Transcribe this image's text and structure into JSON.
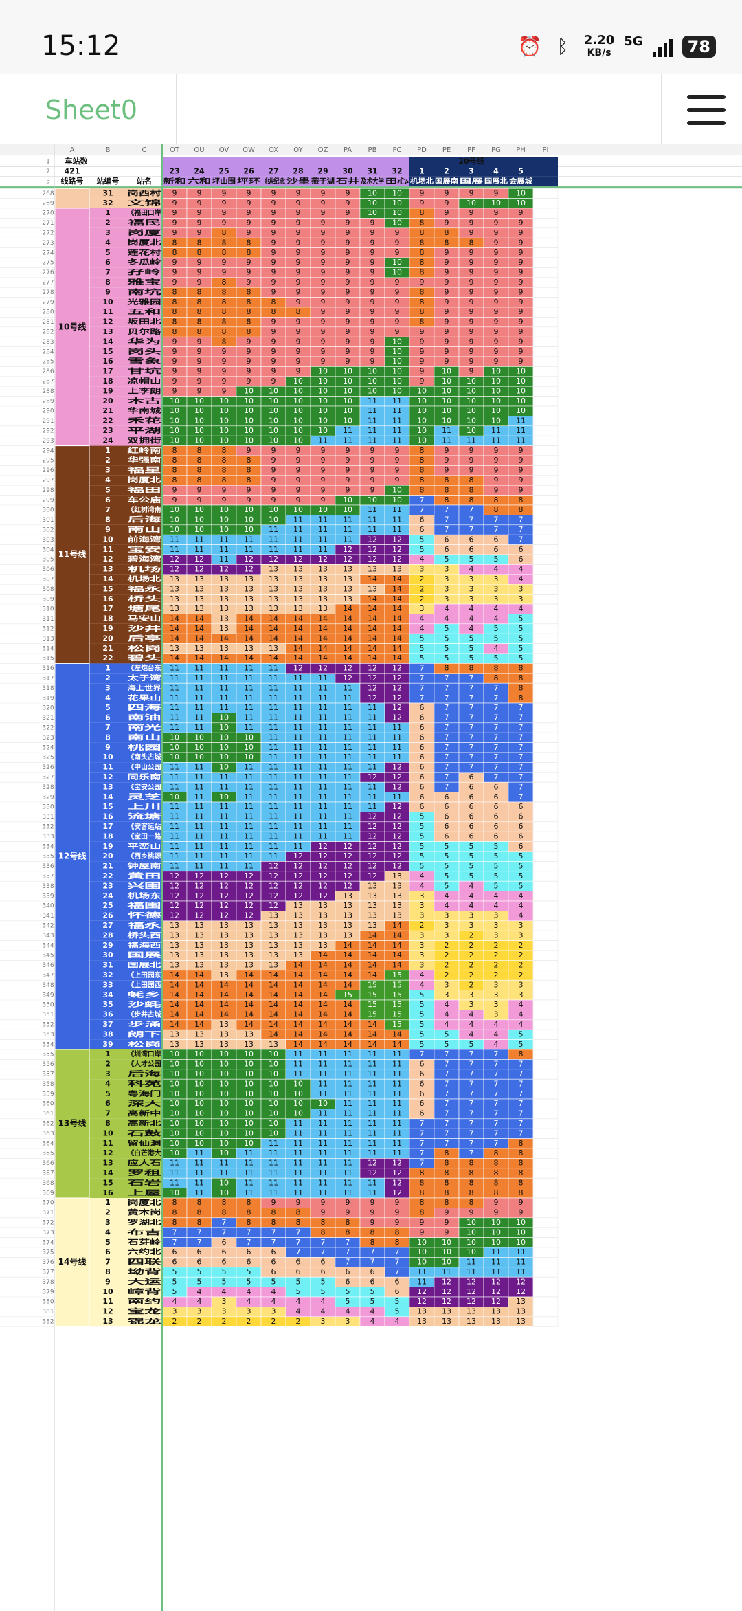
{
  "status_bar": {
    "time": "15:12",
    "net_speed": "2.20",
    "net_unit": "KB/s",
    "net_type": "5G",
    "battery": "78"
  },
  "app": {
    "sheet_title": "Sheet0"
  },
  "columns": {
    "row_header_labels": [
      "A",
      "B",
      "C"
    ],
    "letters": [
      "OT",
      "OU",
      "OV",
      "OW",
      "OX",
      "OY",
      "OZ",
      "PA",
      "PB",
      "PC",
      "PD",
      "PE",
      "PF",
      "PG",
      "PH",
      "PI"
    ]
  },
  "header_rows": {
    "row1_labels": [
      "车站数",
      "20号线"
    ],
    "row2_total": "421",
    "row2_nums": [
      "23",
      "24",
      "25",
      "26",
      "27",
      "28",
      "29",
      "30",
      "31",
      "32",
      "1",
      "2",
      "3",
      "4",
      "5"
    ],
    "row3_labels": [
      "线路号",
      "站编号",
      "站名"
    ],
    "row3_names": [
      "新和",
      "六和",
      "坪山围",
      "坪环",
      "《纵纪念",
      "沙壆",
      "燕子湖",
      "石井",
      "及术大学",
      "田心",
      "机场北",
      "国展南",
      "国展",
      "国展北",
      "会展城"
    ]
  },
  "row_numbers": {
    "first_visible": 268,
    "last_visible": 382
  },
  "line_groups": [
    {
      "label": "",
      "color": "#f8cba8"
    },
    {
      "label": "10号线",
      "color": "#ee9ad0"
    },
    {
      "label": "11号线",
      "color": "#7a3d1a"
    },
    {
      "label": "12号线",
      "color": "#3a66e0"
    },
    {
      "label": "13号线",
      "color": "#a8c84a"
    },
    {
      "label": "14号线",
      "color": "#fff6c4"
    }
  ],
  "legend_colors": {
    "2": "#ffd83a",
    "3": "#ffe27a",
    "4": "#f29ad8",
    "5": "#70f0f4",
    "6": "#f9c9a5",
    "7": "#3f6de3",
    "8": "#f08030",
    "9": "#f08080",
    "10": "#2c8a2c",
    "11": "#5cc0f2",
    "12": "#6e1a8a",
    "13": "#f7caa0",
    "14": "#f08030",
    "15": "#3f9a2a"
  },
  "rows": [
    {
      "r": 268,
      "g": 0,
      "n": "31",
      "s": "岗西村",
      "v": "9 9 9 9 9 9 9 9 10 10 9 9 9 9 10"
    },
    {
      "r": 269,
      "g": 0,
      "n": "32",
      "s": "文锦",
      "v": "9 9 9 9 9 9 9 9 10 10 9 9 10 10 10"
    },
    {
      "r": 270,
      "g": 1,
      "n": "1",
      "s": "《福田口岸",
      "v": "9 9 9 9 9 9 9 9 10 10 8 9 9 9 9"
    },
    {
      "r": 271,
      "g": 1,
      "n": "2",
      "s": "福民",
      "v": "9 9 9 9 9 9 9 9 9 10 8 9 9 9 9"
    },
    {
      "r": 272,
      "g": 1,
      "n": "3",
      "s": "岗厦",
      "v": "9 9 8 9 9 9 9 9 9 9 8 8 9 9 9"
    },
    {
      "r": 273,
      "g": 1,
      "n": "4",
      "s": "岗厦北",
      "v": "8 8 8 8 9 9 9 9 9 9 8 8 8 9 9"
    },
    {
      "r": 274,
      "g": 1,
      "n": "5",
      "s": "莲花村",
      "v": "8 8 8 8 9 9 9 9 9 9 8 9 9 9 9"
    },
    {
      "r": 275,
      "g": 1,
      "n": "6",
      "s": "冬瓜岭",
      "v": "9 9 9 9 9 9 9 9 9 10 8 9 9 9 9"
    },
    {
      "r": 276,
      "g": 1,
      "n": "7",
      "s": "孖岭",
      "v": "9 9 9 9 9 9 9 9 9 10 8 9 9 9 9"
    },
    {
      "r": 277,
      "g": 1,
      "n": "8",
      "s": "雅宝",
      "v": "9 9 8 9 9 9 9 9 9 9 9 9 9 9 9"
    },
    {
      "r": 278,
      "g": 1,
      "n": "9",
      "s": "南坑",
      "v": "8 8 8 8 9 9 9 9 9 9 8 9 9 9 9"
    },
    {
      "r": 279,
      "g": 1,
      "n": "10",
      "s": "光雅园",
      "v": "8 8 8 8 8 9 9 9 9 9 8 9 9 9 9"
    },
    {
      "r": 280,
      "g": 1,
      "n": "11",
      "s": "五和",
      "v": "8 8 8 8 8 8 9 9 9 9 8 9 9 9 9"
    },
    {
      "r": 281,
      "g": 1,
      "n": "12",
      "s": "坂田北",
      "v": "8 8 8 8 9 9 9 9 9 9 8 9 9 9 9"
    },
    {
      "r": 282,
      "g": 1,
      "n": "13",
      "s": "贝尔路",
      "v": "8 8 8 8 9 9 9 9 9 9 9 9 9 9 9"
    },
    {
      "r": 283,
      "g": 1,
      "n": "14",
      "s": "华为",
      "v": "9 9 8 9 9 9 9 9 9 10 9 9 9 9 9"
    },
    {
      "r": 284,
      "g": 1,
      "n": "15",
      "s": "岗头",
      "v": "9 9 9 9 9 9 9 9 9 10 9 9 9 9 9"
    },
    {
      "r": 285,
      "g": 1,
      "n": "16",
      "s": "雪象",
      "v": "9 9 9 9 9 9 9 9 9 10 9 9 9 9 9"
    },
    {
      "r": 286,
      "g": 1,
      "n": "17",
      "s": "甘坑",
      "v": "9 9 9 9 9 9 10 10 10 10 9 10 9 10 10"
    },
    {
      "r": 287,
      "g": 1,
      "n": "18",
      "s": "凉帽山",
      "v": "9 9 9 9 9 10 10 10 10 10 9 10 10 10 10"
    },
    {
      "r": 288,
      "g": 1,
      "n": "19",
      "s": "上李朗",
      "v": "9 9 9 10 10 10 10 10 10 10 10 10 10 10 10"
    },
    {
      "r": 289,
      "g": 1,
      "n": "20",
      "s": "木古",
      "v": "10 10 10 10 10 10 10 10 11 11 10 10 10 10 10"
    },
    {
      "r": 290,
      "g": 1,
      "n": "21",
      "s": "华南城",
      "v": "10 10 10 10 10 10 10 10 11 11 10 10 10 10 10"
    },
    {
      "r": 291,
      "g": 1,
      "n": "22",
      "s": "禾花",
      "v": "10 10 10 10 10 10 10 10 11 11 10 10 10 10 11"
    },
    {
      "r": 292,
      "g": 1,
      "n": "23",
      "s": "平湖",
      "v": "10 10 10 10 10 10 10 11 11 11 10 11 10 11 11"
    },
    {
      "r": 293,
      "g": 1,
      "n": "24",
      "s": "双拥街",
      "v": "10 10 10 10 10 10 11 11 11 11 10 11 11 11 11"
    },
    {
      "r": 294,
      "g": 2,
      "n": "1",
      "s": "红岭南",
      "v": "8 8 8 9 9 9 9 9 9 9 8 9 9 9 9"
    },
    {
      "r": 295,
      "g": 2,
      "n": "2",
      "s": "华强南",
      "v": "8 8 8 8 9 9 9 9 9 9 8 9 9 9 9"
    },
    {
      "r": 296,
      "g": 2,
      "n": "3",
      "s": "福星",
      "v": "8 8 8 8 9 9 9 9 9 9 8 9 9 9 9"
    },
    {
      "r": 297,
      "g": 2,
      "n": "4",
      "s": "岗厦北",
      "v": "8 8 8 8 9 9 9 9 9 9 8 8 8 9 9"
    },
    {
      "r": 298,
      "g": 2,
      "n": "5",
      "s": "福田",
      "v": "9 9 9 9 9 9 9 9 9 10 8 8 8 9 9"
    },
    {
      "r": 299,
      "g": 2,
      "n": "6",
      "s": "车公庙",
      "v": "9 9 9 9 9 9 9 10 10 10 7 8 8 8 8"
    },
    {
      "r": 300,
      "g": 2,
      "n": "7",
      "s": "《红树湾南",
      "v": "10 10 10 10 10 10 10 10 11 11 7 7 7 8 8"
    },
    {
      "r": 301,
      "g": 2,
      "n": "8",
      "s": "后海",
      "v": "10 10 10 10 10 11 11 11 11 11 6 7 7 7 7"
    },
    {
      "r": 302,
      "g": 2,
      "n": "9",
      "s": "南山",
      "v": "10 10 10 10 11 11 11 11 11 11 6 7 7 7 7"
    },
    {
      "r": 303,
      "g": 2,
      "n": "10",
      "s": "前海湾",
      "v": "11 11 11 11 11 11 11 11 12 12 5 6 6 6 7"
    },
    {
      "r": 304,
      "g": 2,
      "n": "11",
      "s": "宝安",
      "v": "11 11 11 11 11 11 11 12 12 12 5 6 6 6 6"
    },
    {
      "r": 305,
      "g": 2,
      "n": "12",
      "s": "碧海湾",
      "v": "12 12 11 12 12 12 12 12 12 12 4 5 5 5 6"
    },
    {
      "r": 306,
      "g": 2,
      "n": "13",
      "s": "机场",
      "v": "12 12 12 12 13 13 13 13 13 13 3 3 4 4 4"
    },
    {
      "r": 307,
      "g": 2,
      "n": "14",
      "s": "机场北",
      "v": "13 13 13 13 13 13 13 13 14 14 2 3 3 3 4"
    },
    {
      "r": 308,
      "g": 2,
      "n": "15",
      "s": "福永",
      "v": "13 13 13 13 13 13 13 13 13 14 2 3 3 3 3"
    },
    {
      "r": 309,
      "g": 2,
      "n": "16",
      "s": "桥头",
      "v": "13 13 13 13 13 13 13 13 14 14 2 3 3 3 3"
    },
    {
      "r": 310,
      "g": 2,
      "n": "17",
      "s": "塘尾",
      "v": "13 13 13 13 13 13 13 14 14 14 3 4 4 4 4"
    },
    {
      "r": 311,
      "g": 2,
      "n": "18",
      "s": "马安山",
      "v": "14 14 13 14 14 14 14 14 14 14 4 4 4 4 5"
    },
    {
      "r": 312,
      "g": 2,
      "n": "19",
      "s": "沙井",
      "v": "14 14 13 14 14 14 14 14 14 14 4 5 4 5 5"
    },
    {
      "r": 313,
      "g": 2,
      "n": "20",
      "s": "后亭",
      "v": "14 14 14 14 14 14 14 14 14 14 5 5 5 5 5"
    },
    {
      "r": 314,
      "g": 2,
      "n": "21",
      "s": "松岗",
      "v": "13 13 13 13 13 14 14 14 14 14 5 5 5 4 5"
    },
    {
      "r": 315,
      "g": 2,
      "n": "22",
      "s": "碧头",
      "v": "14 14 14 14 14 14 14 14 14 14 5 5 5 5 5"
    },
    {
      "r": 316,
      "g": 3,
      "n": "1",
      "s": "《左炮台东",
      "v": "11 11 11 11 11 12 12 12 12 12 7 8 8 8 8"
    },
    {
      "r": 317,
      "g": 3,
      "n": "2",
      "s": "太子湾",
      "v": "11 11 11 11 11 11 11 12 12 12 7 7 7 8 8"
    },
    {
      "r": 318,
      "g": 3,
      "n": "3",
      "s": "海上世界",
      "v": "11 11 11 11 11 11 11 11 12 12 7 7 7 7 8"
    },
    {
      "r": 319,
      "g": 3,
      "n": "4",
      "s": "花果山",
      "v": "11 11 11 11 11 11 11 11 12 12 7 7 7 7 8"
    },
    {
      "r": 320,
      "g": 3,
      "n": "5",
      "s": "四海",
      "v": "11 11 11 11 11 11 11 11 11 12 6 7 7 7 7"
    },
    {
      "r": 321,
      "g": 3,
      "n": "6",
      "s": "南油",
      "v": "11 11 10 11 11 11 11 11 11 12 6 7 7 7 7"
    },
    {
      "r": 322,
      "g": 3,
      "n": "7",
      "s": "南光",
      "v": "11 11 10 11 11 11 11 11 11 11 6 7 7 7 7"
    },
    {
      "r": 323,
      "g": 3,
      "n": "8",
      "s": "南山",
      "v": "10 10 10 10 11 11 11 11 11 11 6 7 7 7 7"
    },
    {
      "r": 324,
      "g": 3,
      "n": "9",
      "s": "桃园",
      "v": "10 10 10 10 11 11 11 11 11 11 6 7 7 7 7"
    },
    {
      "r": 325,
      "g": 3,
      "n": "10",
      "s": "《南头古城",
      "v": "10 10 10 10 11 11 11 11 11 11 6 7 7 7 7"
    },
    {
      "r": 326,
      "g": 3,
      "n": "11",
      "s": "《中山公园",
      "v": "11 11 10 11 11 11 11 11 11 12 6 7 7 7 7"
    },
    {
      "r": 327,
      "g": 3,
      "n": "12",
      "s": "同乐南",
      "v": "11 11 11 11 11 11 11 11 12 12 6 7 6 7 7"
    },
    {
      "r": 328,
      "g": 3,
      "n": "13",
      "s": "《宝安公园",
      "v": "11 11 11 11 11 11 11 11 11 12 6 7 6 6 7"
    },
    {
      "r": 329,
      "g": 3,
      "n": "14",
      "s": "灵芝",
      "v": "10 11 10 11 11 11 11 11 11 11 6 6 6 6 7"
    },
    {
      "r": 330,
      "g": 3,
      "n": "15",
      "s": "上川",
      "v": "11 11 11 11 11 11 11 11 11 12 6 6 6 6 6"
    },
    {
      "r": 331,
      "g": 3,
      "n": "16",
      "s": "流塘",
      "v": "11 11 11 11 11 11 11 11 12 12 5 6 6 6 6"
    },
    {
      "r": 332,
      "g": 3,
      "n": "17",
      "s": "《安客运站",
      "v": "11 11 11 11 11 11 11 11 12 12 5 6 6 6 6"
    },
    {
      "r": 333,
      "g": 3,
      "n": "18",
      "s": "《宝田一路",
      "v": "11 11 11 11 11 11 11 11 12 12 5 6 6 6 6"
    },
    {
      "r": 334,
      "g": 3,
      "n": "19",
      "s": "平峦山",
      "v": "11 11 11 11 11 11 12 12 12 12 5 5 5 5 6"
    },
    {
      "r": 335,
      "g": 3,
      "n": "20",
      "s": "《西乡桃源",
      "v": "11 11 11 11 11 12 12 12 12 12 5 5 5 5 5"
    },
    {
      "r": 336,
      "g": 3,
      "n": "21",
      "s": "钟屋南",
      "v": "11 11 11 11 12 12 12 12 12 12 5 5 5 5 5"
    },
    {
      "r": 337,
      "g": 3,
      "n": "22",
      "s": "黄田",
      "v": "12 12 12 12 12 12 12 12 12 13 4 5 5 5 5"
    },
    {
      "r": 338,
      "g": 3,
      "n": "23",
      "s": "兴围",
      "v": "12 12 12 12 12 12 12 12 13 13 4 5 4 5 5"
    },
    {
      "r": 339,
      "g": 3,
      "n": "24",
      "s": "机场东",
      "v": "12 12 12 12 12 12 12 13 13 13 3 4 4 4 4"
    },
    {
      "r": 340,
      "g": 3,
      "n": "25",
      "s": "福围",
      "v": "12 12 12 12 12 13 13 13 13 13 3 4 4 4 4"
    },
    {
      "r": 341,
      "g": 3,
      "n": "26",
      "s": "怀德",
      "v": "12 12 12 12 13 13 13 13 13 13 3 3 3 3 4"
    },
    {
      "r": 342,
      "g": 3,
      "n": "27",
      "s": "福永",
      "v": "13 13 13 13 13 13 13 13 13 14 2 3 3 3 3"
    },
    {
      "r": 343,
      "g": 3,
      "n": "28",
      "s": "桥头西",
      "v": "13 13 13 13 13 13 13 13 14 14 3 3 2 3 3"
    },
    {
      "r": 344,
      "g": 3,
      "n": "29",
      "s": "福海西",
      "v": "13 13 13 13 13 13 13 14 14 14 3 2 2 2 2"
    },
    {
      "r": 345,
      "g": 3,
      "n": "30",
      "s": "国展",
      "v": "13 13 13 13 13 13 14 14 14 14 3 2 2 2 2"
    },
    {
      "r": 346,
      "g": 3,
      "n": "31",
      "s": "国展北",
      "v": "13 13 13 13 13 14 14 14 14 14 3 2 2 2 2"
    },
    {
      "r": 347,
      "g": 3,
      "n": "32",
      "s": "《上田园东",
      "v": "14 14 13 14 14 14 14 14 14 15 4 2 2 2 2"
    },
    {
      "r": 348,
      "g": 3,
      "n": "33",
      "s": "《上田园西",
      "v": "14 14 14 14 14 14 14 14 15 15 4 3 2 3 3"
    },
    {
      "r": 349,
      "g": 3,
      "n": "34",
      "s": "蚝乡",
      "v": "14 14 14 14 14 14 14 15 15 15 5 3 3 3 3"
    },
    {
      "r": 350,
      "g": 3,
      "n": "35",
      "s": "沙蚝",
      "v": "14 14 14 14 14 14 14 14 15 15 5 4 3 3 4"
    },
    {
      "r": 351,
      "g": 3,
      "n": "36",
      "s": "《步井古城",
      "v": "14 14 14 14 14 14 14 14 15 15 5 4 4 3 4"
    },
    {
      "r": 352,
      "g": 3,
      "n": "37",
      "s": "步涌",
      "v": "14 14 13 14 14 14 14 14 14 15 5 4 4 4 4"
    },
    {
      "r": 353,
      "g": 3,
      "n": "38",
      "s": "朗下",
      "v": "13 13 13 13 14 14 14 14 14 14 5 5 4 4 5"
    },
    {
      "r": 354,
      "g": 3,
      "n": "39",
      "s": "松岗",
      "v": "13 13 13 13 13 14 14 14 14 14 5 5 5 4 5"
    },
    {
      "r": 355,
      "g": 4,
      "n": "1",
      "s": "《圳湾口岸",
      "v": "10 10 10 10 10 11 11 11 11 11 7 7 7 7 8"
    },
    {
      "r": 356,
      "g": 4,
      "n": "2",
      "s": "《人才公园",
      "v": "10 10 10 10 10 11 11 11 11 11 6 7 7 7 7"
    },
    {
      "r": 357,
      "g": 4,
      "n": "3",
      "s": "后海",
      "v": "10 10 10 10 10 11 11 11 11 11 6 7 7 7 7"
    },
    {
      "r": 358,
      "g": 4,
      "n": "4",
      "s": "科苑",
      "v": "10 10 10 10 10 10 11 11 11 11 6 7 7 7 7"
    },
    {
      "r": 359,
      "g": 4,
      "n": "5",
      "s": "粤海门",
      "v": "10 10 10 10 10 10 11 11 11 11 6 7 7 7 7"
    },
    {
      "r": 360,
      "g": 4,
      "n": "6",
      "s": "深大",
      "v": "10 10 10 10 10 10 10 11 11 11 6 7 7 7 7"
    },
    {
      "r": 361,
      "g": 4,
      "n": "7",
      "s": "高新中",
      "v": "10 10 10 10 10 10 11 11 11 11 6 7 7 7 7"
    },
    {
      "r": 362,
      "g": 4,
      "n": "8",
      "s": "高新北",
      "v": "10 10 10 10 10 11 11 11 11 11 7 7 7 7 7"
    },
    {
      "r": 363,
      "g": 4,
      "n": "10",
      "s": "石鼓",
      "v": "10 10 10 10 10 11 11 11 11 11 7 7 7 7 7"
    },
    {
      "r": 364,
      "g": 4,
      "n": "11",
      "s": "留仙洞",
      "v": "10 10 10 10 11 11 11 11 11 11 7 7 7 7 8"
    },
    {
      "r": 365,
      "g": 4,
      "n": "12",
      "s": "《白芒港大",
      "v": "10 11 10 11 11 11 11 11 11 11 7 8 7 8 8"
    },
    {
      "r": 366,
      "g": 4,
      "n": "13",
      "s": "应人石",
      "v": "11 11 11 11 11 11 11 11 12 12 7 8 8 8 8"
    },
    {
      "r": 367,
      "g": 4,
      "n": "14",
      "s": "罗租",
      "v": "11 11 11 11 11 11 11 11 12 12 8 8 8 8 8"
    },
    {
      "r": 368,
      "g": 4,
      "n": "15",
      "s": "石岩",
      "v": "11 11 10 11 11 11 11 11 11 12 8 8 8 8 8"
    },
    {
      "r": 369,
      "g": 4,
      "n": "16",
      "s": "上屋",
      "v": "10 11 10 11 11 11 11 11 11 12 8 8 8 8 8"
    },
    {
      "r": 370,
      "g": 5,
      "n": "1",
      "s": "岗厦北",
      "v": "8 8 8 8 9 9 9 9 9 9 8 8 8 9 9"
    },
    {
      "r": 371,
      "g": 5,
      "n": "2",
      "s": "黄木岗",
      "v": "8 8 8 8 8 8 9 9 9 9 8 9 9 9 9"
    },
    {
      "r": 372,
      "g": 5,
      "n": "3",
      "s": "罗湖北",
      "v": "8 8 7 8 8 8 8 8 9 9 9 9 10 10 10"
    },
    {
      "r": 373,
      "g": 5,
      "n": "4",
      "s": "布吉",
      "v": "7 7 7 7 7 7 8 8 8 8 9 9 10 10 10"
    },
    {
      "r": 374,
      "g": 5,
      "n": "5",
      "s": "石芽岭",
      "v": "7 7 6 7 7 7 7 7 8 8 10 10 10 10 10"
    },
    {
      "r": 375,
      "g": 5,
      "n": "6",
      "s": "六约北",
      "v": "6 6 6 6 6 7 7 7 7 7 10 10 10 11 11"
    },
    {
      "r": 376,
      "g": 5,
      "n": "7",
      "s": "四联",
      "v": "6 6 6 6 6 6 6 7 7 7 10 10 11 11 11"
    },
    {
      "r": 377,
      "g": 5,
      "n": "8",
      "s": "坳背",
      "v": "5 5 5 5 6 6 6 6 6 7 11 11 11 11 11"
    },
    {
      "r": 378,
      "g": 5,
      "n": "9",
      "s": "大运",
      "v": "5 5 5 5 5 5 5 6 6 6 11 12 12 12 12"
    },
    {
      "r": 379,
      "g": 5,
      "n": "10",
      "s": "嶂背",
      "v": "5 4 4 4 4 5 5 5 5 6 12 12 12 12 12"
    },
    {
      "r": 380,
      "g": 5,
      "n": "11",
      "s": "南约",
      "v": "4 4 3 4 4 4 4 5 5 5 12 12 12 12 13"
    },
    {
      "r": 381,
      "g": 5,
      "n": "12",
      "s": "宝龙",
      "v": "3 3 3 3 3 4 4 4 4 5 13 13 13 13 13"
    },
    {
      "r": 382,
      "g": 5,
      "n": "13",
      "s": "锦龙",
      "v": "2 2 2 2 2 2 3 3 4 4 13 13 13 13 13"
    }
  ]
}
